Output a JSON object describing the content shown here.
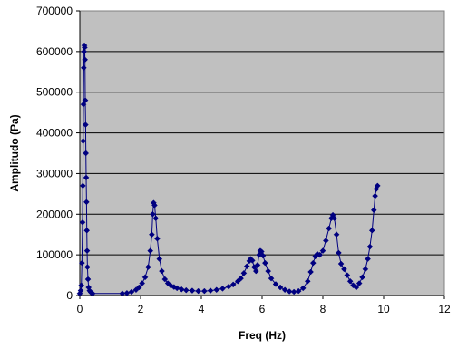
{
  "chart_data": {
    "type": "scatter",
    "title": "",
    "xlabel": "Freq (Hz)",
    "ylabel": "Amplitudo (Pa)",
    "xlim": [
      0,
      12
    ],
    "ylim": [
      0,
      700000
    ],
    "x_ticks": [
      0,
      2,
      4,
      6,
      8,
      10,
      12
    ],
    "y_ticks": [
      0,
      100000,
      200000,
      300000,
      400000,
      500000,
      600000,
      700000
    ],
    "x_tick_labels": [
      "0",
      "2",
      "4",
      "6",
      "8",
      "10",
      "12"
    ],
    "y_tick_labels": [
      "0",
      "100000",
      "200000",
      "300000",
      "400000",
      "500000",
      "600000",
      "700000"
    ],
    "grid": "horizontal",
    "legend": "none",
    "plot_background": "#c0c0c0",
    "series_color": "#000080",
    "marker": "diamond",
    "lines": true,
    "series": [
      {
        "name": "",
        "points": [
          [
            0.0,
            5000
          ],
          [
            0.03,
            12000
          ],
          [
            0.05,
            25000
          ],
          [
            0.07,
            80000
          ],
          [
            0.09,
            180000
          ],
          [
            0.1,
            270000
          ],
          [
            0.11,
            380000
          ],
          [
            0.12,
            470000
          ],
          [
            0.13,
            560000
          ],
          [
            0.14,
            600000
          ],
          [
            0.15,
            615000
          ],
          [
            0.16,
            610000
          ],
          [
            0.17,
            580000
          ],
          [
            0.18,
            480000
          ],
          [
            0.19,
            420000
          ],
          [
            0.2,
            350000
          ],
          [
            0.21,
            290000
          ],
          [
            0.22,
            230000
          ],
          [
            0.23,
            160000
          ],
          [
            0.24,
            110000
          ],
          [
            0.25,
            70000
          ],
          [
            0.27,
            40000
          ],
          [
            0.29,
            20000
          ],
          [
            0.32,
            12000
          ],
          [
            0.36,
            8000
          ],
          [
            0.42,
            5000
          ],
          [
            1.4,
            5000
          ],
          [
            1.55,
            6000
          ],
          [
            1.7,
            9000
          ],
          [
            1.85,
            14000
          ],
          [
            1.95,
            20000
          ],
          [
            2.05,
            30000
          ],
          [
            2.15,
            45000
          ],
          [
            2.25,
            70000
          ],
          [
            2.32,
            110000
          ],
          [
            2.37,
            150000
          ],
          [
            2.4,
            200000
          ],
          [
            2.43,
            228000
          ],
          [
            2.46,
            222000
          ],
          [
            2.5,
            190000
          ],
          [
            2.55,
            140000
          ],
          [
            2.62,
            90000
          ],
          [
            2.7,
            60000
          ],
          [
            2.8,
            40000
          ],
          [
            2.9,
            30000
          ],
          [
            3.0,
            24000
          ],
          [
            3.1,
            21000
          ],
          [
            3.2,
            18000
          ],
          [
            3.35,
            15000
          ],
          [
            3.5,
            13000
          ],
          [
            3.7,
            12000
          ],
          [
            3.9,
            11000
          ],
          [
            4.1,
            11000
          ],
          [
            4.3,
            12000
          ],
          [
            4.5,
            14000
          ],
          [
            4.7,
            17000
          ],
          [
            4.9,
            22000
          ],
          [
            5.05,
            27000
          ],
          [
            5.2,
            35000
          ],
          [
            5.3,
            42000
          ],
          [
            5.4,
            55000
          ],
          [
            5.5,
            72000
          ],
          [
            5.58,
            85000
          ],
          [
            5.62,
            90000
          ],
          [
            5.68,
            86000
          ],
          [
            5.74,
            70000
          ],
          [
            5.8,
            60000
          ],
          [
            5.85,
            75000
          ],
          [
            5.9,
            100000
          ],
          [
            5.94,
            110000
          ],
          [
            5.98,
            108000
          ],
          [
            6.03,
            98000
          ],
          [
            6.1,
            80000
          ],
          [
            6.2,
            60000
          ],
          [
            6.3,
            42000
          ],
          [
            6.45,
            28000
          ],
          [
            6.6,
            20000
          ],
          [
            6.75,
            14000
          ],
          [
            6.9,
            10000
          ],
          [
            7.05,
            9000
          ],
          [
            7.2,
            11000
          ],
          [
            7.35,
            18000
          ],
          [
            7.5,
            35000
          ],
          [
            7.6,
            58000
          ],
          [
            7.68,
            80000
          ],
          [
            7.75,
            96000
          ],
          [
            7.82,
            102000
          ],
          [
            7.9,
            100000
          ],
          [
            8.0,
            110000
          ],
          [
            8.1,
            135000
          ],
          [
            8.2,
            165000
          ],
          [
            8.28,
            190000
          ],
          [
            8.33,
            198000
          ],
          [
            8.38,
            190000
          ],
          [
            8.45,
            150000
          ],
          [
            8.52,
            105000
          ],
          [
            8.6,
            78000
          ],
          [
            8.7,
            65000
          ],
          [
            8.8,
            50000
          ],
          [
            8.9,
            35000
          ],
          [
            9.0,
            25000
          ],
          [
            9.1,
            20000
          ],
          [
            9.2,
            30000
          ],
          [
            9.3,
            45000
          ],
          [
            9.4,
            65000
          ],
          [
            9.48,
            90000
          ],
          [
            9.55,
            120000
          ],
          [
            9.62,
            160000
          ],
          [
            9.68,
            210000
          ],
          [
            9.72,
            245000
          ],
          [
            9.76,
            262000
          ],
          [
            9.8,
            270000
          ]
        ]
      }
    ]
  }
}
